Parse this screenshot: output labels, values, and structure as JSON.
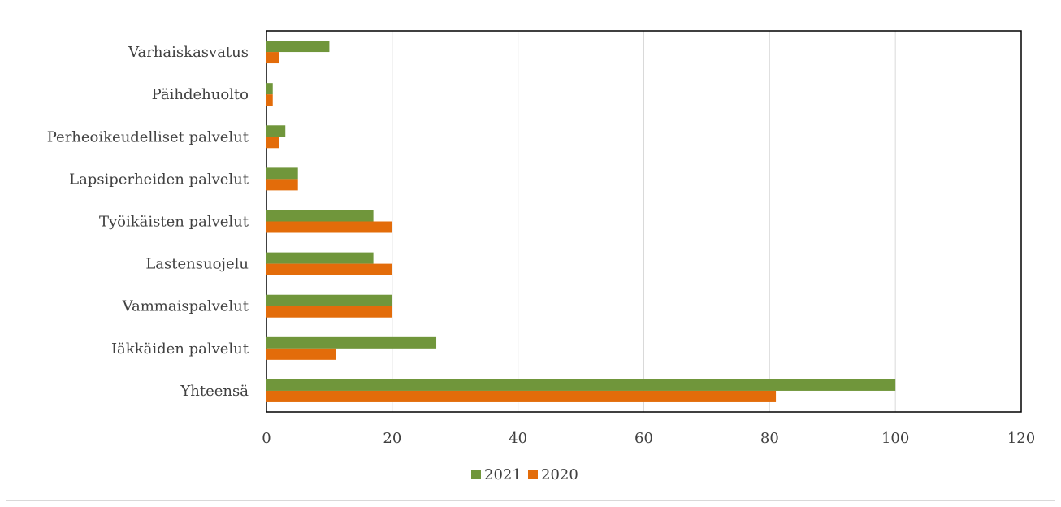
{
  "chart_data": {
    "type": "bar",
    "orientation": "horizontal",
    "categories": [
      "Yhteensä",
      "Iäkkäiden palvelut",
      "Vammaispalvelut",
      "Lastensuojelu",
      "Työikäisten palvelut",
      "Lapsiperheiden palvelut",
      "Perheoikeudelliset palvelut",
      "Päihdehuolto",
      "Varhaiskasvatus"
    ],
    "series": [
      {
        "name": "2021",
        "color": "#70963b",
        "values": [
          100,
          27,
          20,
          17,
          17,
          5,
          3,
          1,
          10
        ]
      },
      {
        "name": "2020",
        "color": "#e36c0a",
        "values": [
          81,
          11,
          20,
          20,
          20,
          5,
          2,
          1,
          2
        ]
      }
    ],
    "xlim": [
      0,
      120
    ],
    "xticks": [
      "0",
      "20",
      "40",
      "60",
      "80",
      "100",
      "120"
    ],
    "grid": true,
    "legend_position": "bottom",
    "title": "",
    "xlabel": "",
    "ylabel": ""
  }
}
